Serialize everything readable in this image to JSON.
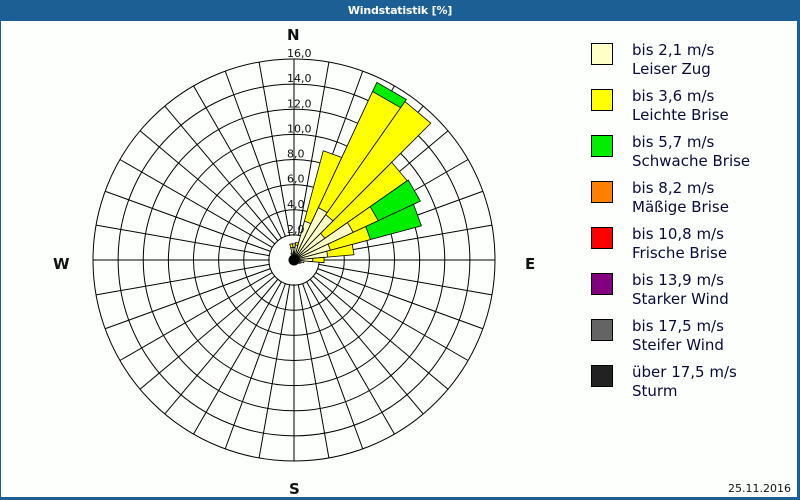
{
  "window": {
    "title": "Windstatistik [%]",
    "date": "25.11.2016"
  },
  "compass": {
    "n": "N",
    "e": "E",
    "s": "S",
    "w": "W"
  },
  "legend": [
    {
      "speed": "bis 2,1 m/s",
      "name": "Leiser Zug",
      "color": "#ffffc8"
    },
    {
      "speed": "bis 3,6 m/s",
      "name": "Leichte Brise",
      "color": "#ffff00"
    },
    {
      "speed": "bis 5,7 m/s",
      "name": "Schwache Brise",
      "color": "#00ee00"
    },
    {
      "speed": "bis 8,2 m/s",
      "name": "Mäßige Brise",
      "color": "#ff8000"
    },
    {
      "speed": "bis 10,8 m/s",
      "name": "Frische Brise",
      "color": "#ff0000"
    },
    {
      "speed": "bis 13,9 m/s",
      "name": "Starker Wind",
      "color": "#800080"
    },
    {
      "speed": "bis 17,5 m/s",
      "name": "Steifer Wind",
      "color": "#646464"
    },
    {
      "speed": "über 17,5 m/s",
      "name": "Sturm",
      "color": "#222222"
    }
  ],
  "chart_data": {
    "type": "wind-rose",
    "title": "Windstatistik [%]",
    "unit": "%",
    "radial_ticks": [
      "2,0",
      "4,0",
      "6,0",
      "8,0",
      "10,0",
      "12,0",
      "14,0",
      "16,0"
    ],
    "radial_max": 16,
    "sector_width_deg": 10,
    "grid": true,
    "legend_position": "right",
    "series_names": [
      "bis 2,1 m/s",
      "bis 3,6 m/s",
      "bis 5,7 m/s",
      "bis 8,2 m/s",
      "bis 10,8 m/s",
      "bis 13,9 m/s",
      "bis 17,5 m/s",
      "über 17,5 m/s"
    ],
    "sectors": [
      {
        "dir": 0,
        "cumulative": [
          1.0,
          1.3
        ]
      },
      {
        "dir": 10,
        "cumulative": [
          1.2,
          1.4
        ]
      },
      {
        "dir": 20,
        "cumulative": [
          3.2,
          9.0
        ]
      },
      {
        "dir": 30,
        "cumulative": [
          4.6,
          14.8,
          15.6
        ]
      },
      {
        "dir": 40,
        "cumulative": [
          4.4,
          15.4
        ]
      },
      {
        "dir": 50,
        "cumulative": [
          3.0,
          11.0
        ]
      },
      {
        "dir": 60,
        "cumulative": [
          5.2,
          7.4,
          11.1
        ]
      },
      {
        "dir": 70,
        "cumulative": [
          3.0,
          6.3,
          10.5
        ]
      },
      {
        "dir": 80,
        "cumulative": [
          2.7,
          4.8
        ]
      },
      {
        "dir": 90,
        "cumulative": [
          1.5,
          2.4
        ]
      },
      {
        "dir": 100,
        "cumulative": [
          0.8
        ]
      },
      {
        "dir": 110,
        "cumulative": [
          0.6
        ]
      },
      {
        "dir": 120,
        "cumulative": [
          0.5
        ]
      },
      {
        "dir": 130,
        "cumulative": [
          0.4
        ]
      },
      {
        "dir": 140,
        "cumulative": [
          0.4
        ]
      },
      {
        "dir": 150,
        "cumulative": [
          0.4
        ]
      },
      {
        "dir": 160,
        "cumulative": [
          0.4
        ]
      },
      {
        "dir": 170,
        "cumulative": [
          0.4
        ]
      },
      {
        "dir": 180,
        "cumulative": [
          0.4
        ]
      },
      {
        "dir": 190,
        "cumulative": [
          0.4
        ]
      },
      {
        "dir": 200,
        "cumulative": [
          0.4
        ]
      },
      {
        "dir": 210,
        "cumulative": [
          0.4
        ]
      },
      {
        "dir": 220,
        "cumulative": [
          0.4
        ]
      },
      {
        "dir": 230,
        "cumulative": [
          0.4
        ]
      },
      {
        "dir": 240,
        "cumulative": [
          0.4
        ]
      },
      {
        "dir": 250,
        "cumulative": [
          0.4
        ]
      },
      {
        "dir": 260,
        "cumulative": [
          0.4
        ]
      },
      {
        "dir": 270,
        "cumulative": [
          0.4
        ]
      },
      {
        "dir": 280,
        "cumulative": [
          0.4
        ]
      },
      {
        "dir": 290,
        "cumulative": [
          0.4
        ]
      },
      {
        "dir": 300,
        "cumulative": [
          0.4
        ]
      },
      {
        "dir": 310,
        "cumulative": [
          0.4
        ]
      },
      {
        "dir": 320,
        "cumulative": [
          0.4
        ]
      },
      {
        "dir": 330,
        "cumulative": [
          0.4
        ]
      },
      {
        "dir": 340,
        "cumulative": [
          0.6
        ]
      },
      {
        "dir": 350,
        "cumulative": [
          1.0,
          1.3
        ]
      }
    ]
  }
}
